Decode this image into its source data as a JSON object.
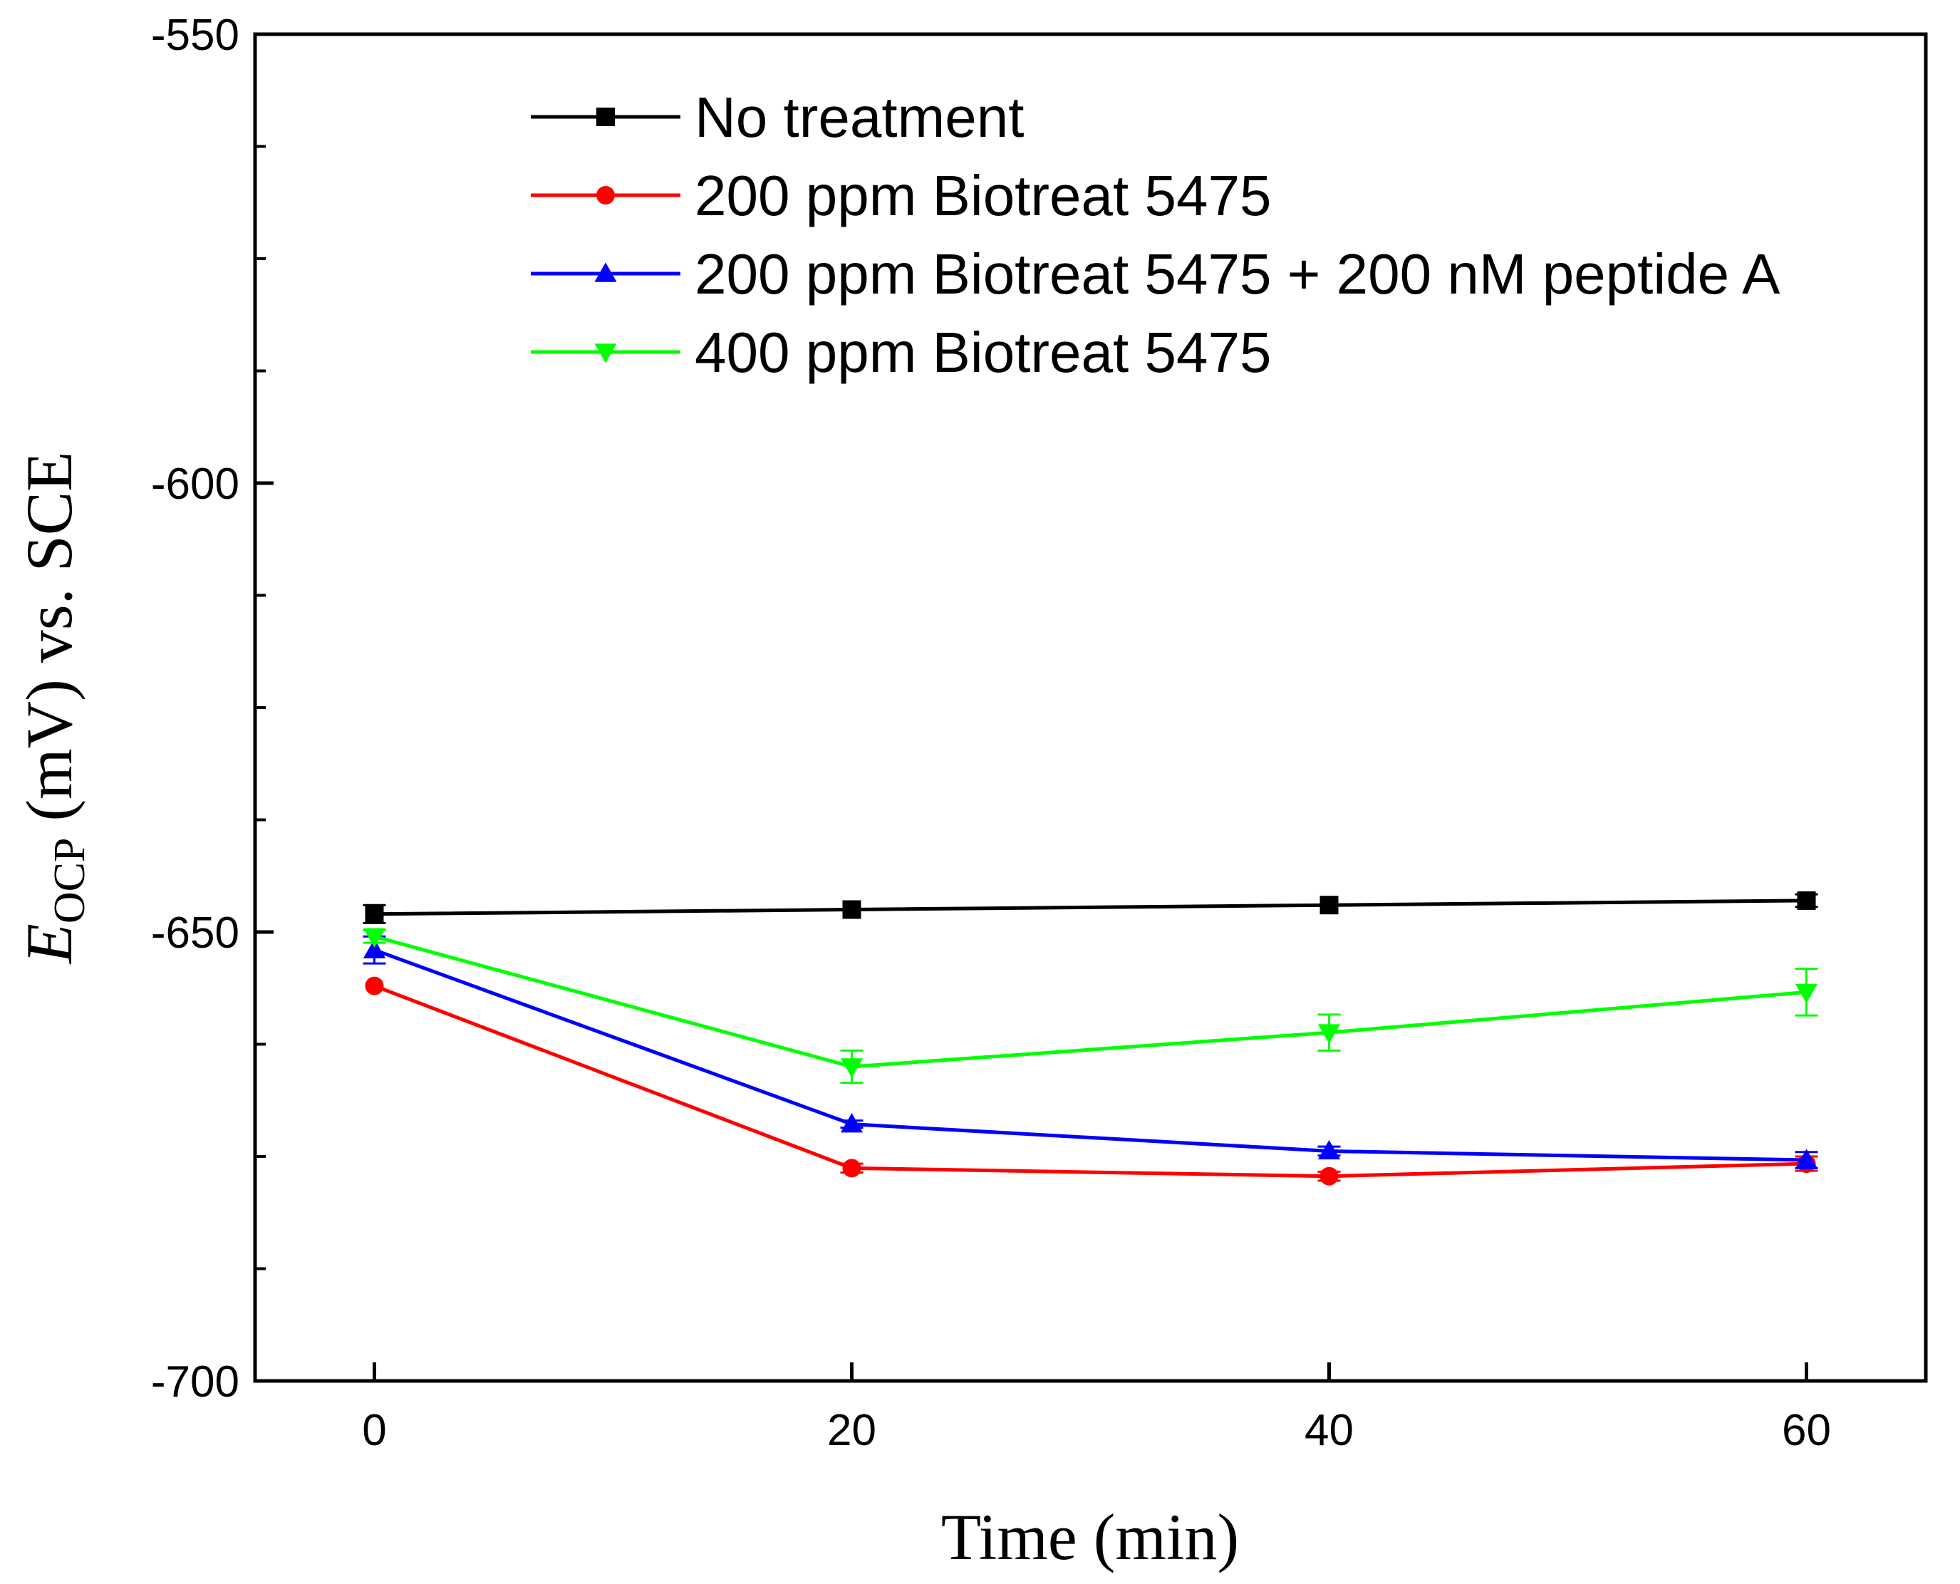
{
  "chart_data": {
    "type": "line",
    "title": "",
    "xlabel": "Time (min)",
    "ylabel": {
      "symbol": "E",
      "subscript": "OCP",
      "rest": " (mV) vs. SCE"
    },
    "xlim": [
      -5,
      65
    ],
    "ylim": [
      -700,
      -550
    ],
    "xticks": [
      0,
      20,
      40,
      60
    ],
    "yticks": [
      -700,
      -650,
      -600,
      -550
    ],
    "x": [
      0,
      20,
      40,
      60
    ],
    "legend_position": "top-center",
    "grid": false,
    "series": [
      {
        "name": "No treatment",
        "color": "#000000",
        "marker": "square",
        "values": [
          -648,
          -647.5,
          -647,
          -646.5
        ],
        "errors": [
          1,
          0,
          0,
          0.7
        ]
      },
      {
        "name": "200 ppm Biotreat 5475",
        "color": "#ff0000",
        "marker": "circle",
        "values": [
          -656,
          -676.3,
          -677.2,
          -675.8
        ],
        "errors": [
          0,
          0.5,
          0.5,
          0.8
        ]
      },
      {
        "name": "200 ppm Biotreat 5475 + 200 nM peptide A",
        "color": "#0000ff",
        "marker": "triangle-up",
        "values": [
          -652,
          -671.4,
          -674.4,
          -675.4
        ],
        "errors": [
          1.5,
          0.4,
          0.5,
          0.9
        ]
      },
      {
        "name": "400 ppm Biotreat 5475",
        "color": "#00ff00",
        "marker": "triangle-down",
        "values": [
          -650.5,
          -665,
          -661.2,
          -656.7
        ],
        "errors": [
          0.7,
          1.8,
          2,
          2.6
        ]
      }
    ]
  }
}
